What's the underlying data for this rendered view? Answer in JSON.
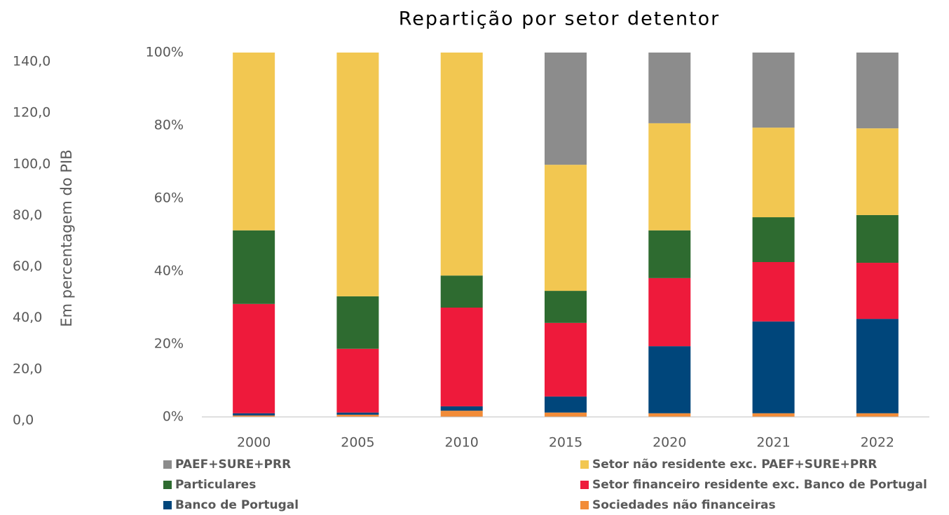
{
  "chart_data": {
    "type": "stacked_bar_100",
    "title": "Repartição por setor detentor",
    "ylabel": "Em percentagem do PIB",
    "categories": [
      "2000",
      "2005",
      "2010",
      "2015",
      "2020",
      "2021",
      "2022"
    ],
    "series": [
      {
        "name": "Sociedades não financeiras",
        "color": "#f28c38",
        "values": [
          0.4,
          0.6,
          1.7,
          1.2,
          1.0,
          1.0,
          1.0
        ]
      },
      {
        "name": "Banco de Portugal",
        "color": "#00467b",
        "values": [
          0.6,
          0.6,
          1.2,
          4.4,
          18.4,
          25.2,
          25.9
        ]
      },
      {
        "name": "Setor financeiro residente exc. Banco de Portugal",
        "color": "#ee1a3b",
        "values": [
          30.0,
          17.5,
          27.1,
          20.2,
          18.7,
          16.3,
          15.4
        ]
      },
      {
        "name": "Particulares",
        "color": "#2e6b30",
        "values": [
          20.2,
          14.4,
          8.8,
          8.8,
          13.1,
          12.3,
          13.1
        ]
      },
      {
        "name": "Setor não residente exc. PAEF+SURE+PRR",
        "color": "#f2c751",
        "values": [
          48.8,
          66.9,
          61.2,
          34.6,
          29.4,
          24.6,
          23.8
        ]
      },
      {
        "name": "PAEF+SURE+PRR",
        "color": "#8c8c8c",
        "values": [
          0,
          0,
          0,
          30.8,
          19.4,
          20.6,
          20.8
        ]
      }
    ],
    "ylim": [
      0,
      100
    ],
    "yticks": [
      {
        "value": 0,
        "label": "0%"
      },
      {
        "value": 20,
        "label": "20%"
      },
      {
        "value": 40,
        "label": "40%"
      },
      {
        "value": 60,
        "label": "60%"
      },
      {
        "value": 80,
        "label": "80%"
      },
      {
        "value": 100,
        "label": "100%"
      }
    ],
    "y2lim": [
      0,
      140
    ],
    "y2ticks": [
      {
        "value": 0,
        "label": "0,0"
      },
      {
        "value": 20,
        "label": "20,0"
      },
      {
        "value": 40,
        "label": "40,0"
      },
      {
        "value": 60,
        "label": "60,0"
      },
      {
        "value": 80,
        "label": "80,0"
      },
      {
        "value": 100,
        "label": "100,0"
      },
      {
        "value": 120,
        "label": "120,0"
      },
      {
        "value": 140,
        "label": "140,0"
      }
    ]
  }
}
